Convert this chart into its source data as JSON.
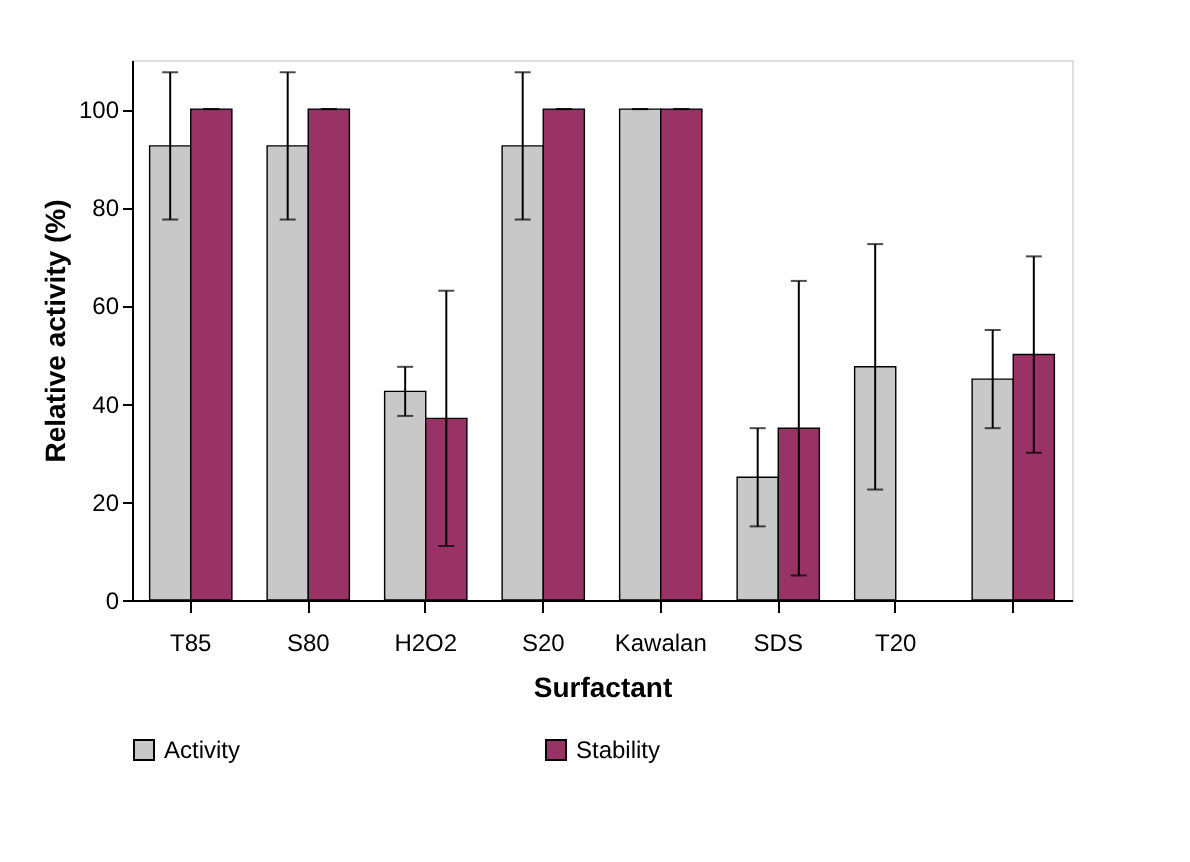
{
  "chart_data": {
    "type": "bar",
    "xlabel": "Surfactant",
    "ylabel": "Relative activity (%)",
    "categories": [
      "T85",
      "S80",
      "H2O2",
      "S20",
      "Kawalan",
      "SDS",
      "T20",
      null
    ],
    "series": [
      {
        "name": "Activity",
        "color": "#c8c8c8",
        "values": [
          92.5,
          92.5,
          42.5,
          92.5,
          100,
          25,
          47.5,
          45
        ],
        "errors": [
          15,
          15,
          5,
          15,
          0,
          10,
          25,
          10
        ]
      },
      {
        "name": "Stability",
        "color": "#993366",
        "values": [
          100,
          100,
          37,
          100,
          100,
          35,
          null,
          50
        ],
        "errors": [
          0,
          0,
          26,
          0,
          0,
          30,
          null,
          20
        ]
      }
    ],
    "ylim": [
      0,
      110
    ],
    "yticks": [
      0,
      20,
      40,
      60,
      80,
      100
    ],
    "grid": false,
    "legend": "bottom"
  }
}
